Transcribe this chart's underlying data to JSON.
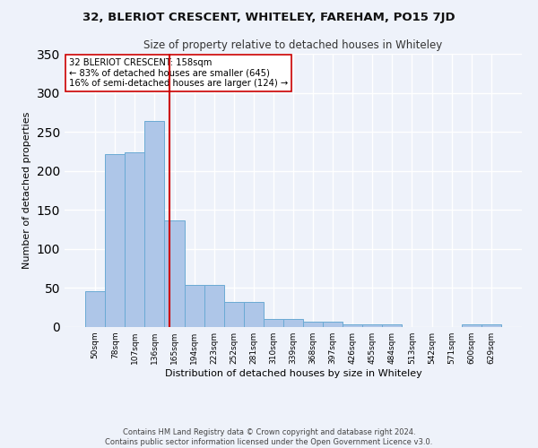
{
  "title": "32, BLERIOT CRESCENT, WHITELEY, FAREHAM, PO15 7JD",
  "subtitle": "Size of property relative to detached houses in Whiteley",
  "xlabel": "Distribution of detached houses by size in Whiteley",
  "ylabel": "Number of detached properties",
  "categories": [
    "50sqm",
    "78sqm",
    "107sqm",
    "136sqm",
    "165sqm",
    "194sqm",
    "223sqm",
    "252sqm",
    "281sqm",
    "310sqm",
    "339sqm",
    "368sqm",
    "397sqm",
    "426sqm",
    "455sqm",
    "484sqm",
    "513sqm",
    "542sqm",
    "571sqm",
    "600sqm",
    "629sqm"
  ],
  "values": [
    46,
    222,
    224,
    264,
    136,
    54,
    54,
    32,
    32,
    10,
    10,
    7,
    7,
    4,
    4,
    4,
    0,
    0,
    0,
    3,
    3
  ],
  "bar_color": "#aec6e8",
  "bar_edge_color": "#6aaad4",
  "background_color": "#eef2fa",
  "grid_color": "#ffffff",
  "red_line_x": 3.75,
  "annotation_text_line1": "32 BLERIOT CRESCENT: 158sqm",
  "annotation_text_line2": "← 83% of detached houses are smaller (645)",
  "annotation_text_line3": "16% of semi-detached houses are larger (124) →",
  "red_line_color": "#cc0000",
  "annotation_box_color": "#ffffff",
  "annotation_box_edge": "#cc0000",
  "footer_line1": "Contains HM Land Registry data © Crown copyright and database right 2024.",
  "footer_line2": "Contains public sector information licensed under the Open Government Licence v3.0.",
  "ylim": [
    0,
    350
  ],
  "yticks": [
    0,
    50,
    100,
    150,
    200,
    250,
    300,
    350
  ]
}
